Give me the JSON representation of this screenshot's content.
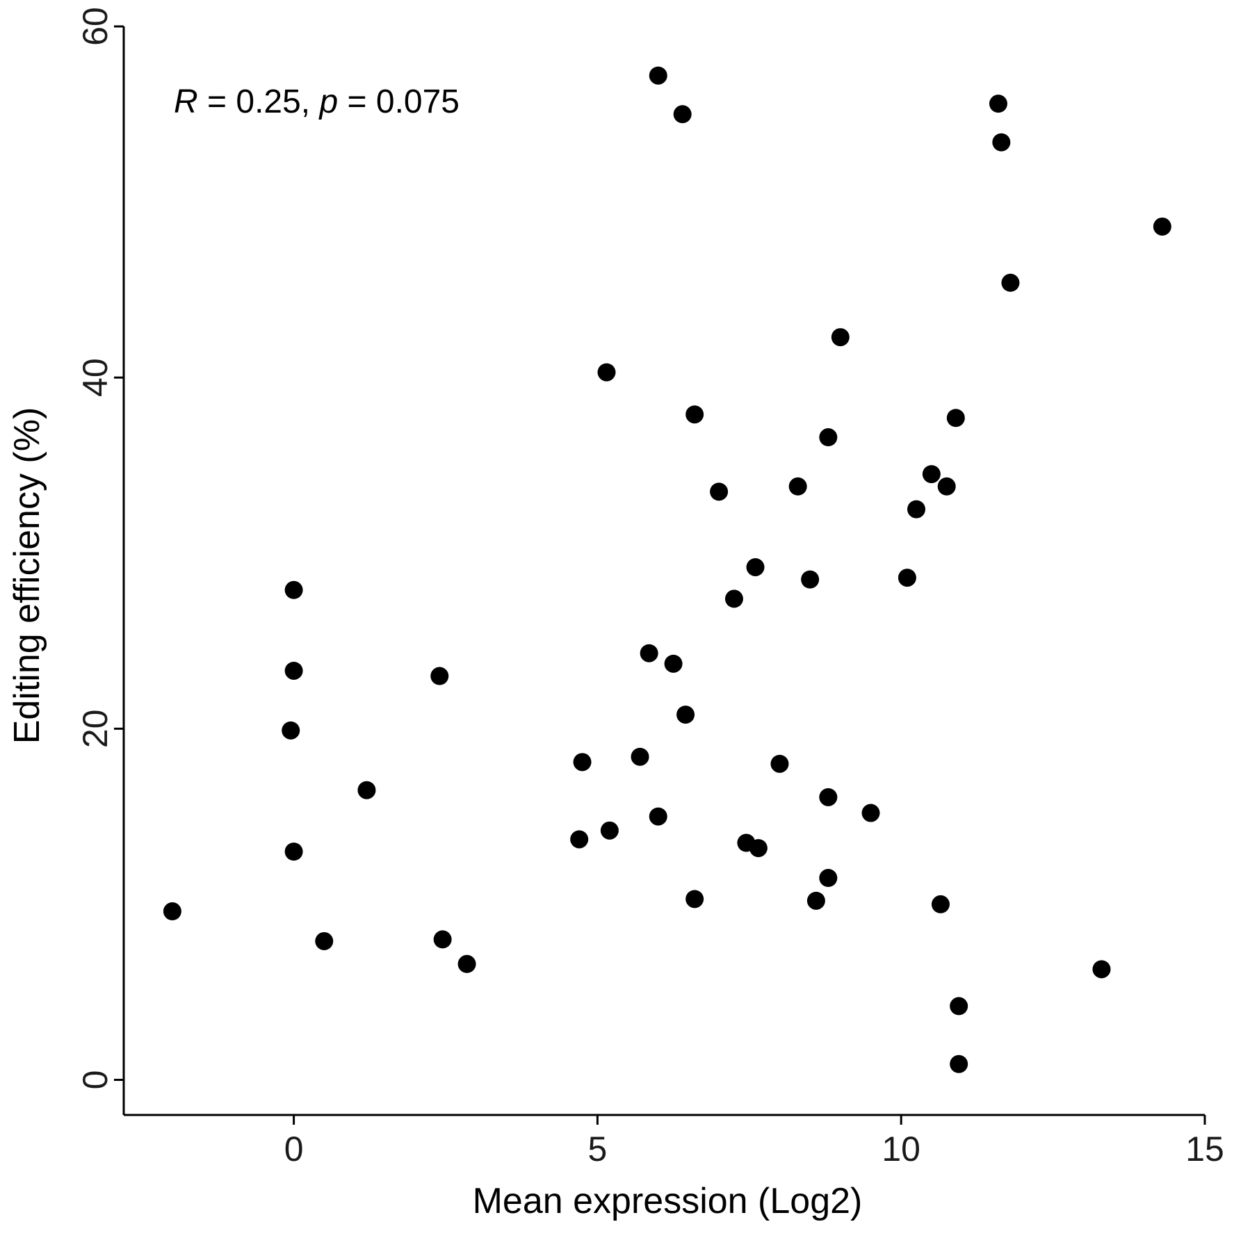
{
  "chart_data": {
    "type": "scatter",
    "title": "",
    "xlabel": "Mean expression (Log2)",
    "ylabel": "Editing efficiency (%)",
    "xlim": [
      -2.8,
      15
    ],
    "ylim": [
      -2,
      60
    ],
    "xticks": [
      0,
      5,
      10,
      15
    ],
    "yticks": [
      0,
      20,
      40,
      60
    ],
    "grid": false,
    "legend": "none",
    "point_color": "#000000",
    "annotation": {
      "r_label": "R",
      "r_value": " = 0.25, ",
      "p_label": "p",
      "p_value": " = 0.075"
    },
    "points": [
      {
        "x": 6.0,
        "y": 57.2
      },
      {
        "x": 6.4,
        "y": 55.0
      },
      {
        "x": 11.6,
        "y": 55.6
      },
      {
        "x": 11.65,
        "y": 53.4
      },
      {
        "x": 14.3,
        "y": 48.6
      },
      {
        "x": 11.8,
        "y": 45.4
      },
      {
        "x": 9.0,
        "y": 42.3
      },
      {
        "x": 5.15,
        "y": 40.3
      },
      {
        "x": 6.6,
        "y": 37.9
      },
      {
        "x": 10.9,
        "y": 37.7
      },
      {
        "x": 8.8,
        "y": 36.6
      },
      {
        "x": 10.5,
        "y": 34.5
      },
      {
        "x": 8.3,
        "y": 33.8
      },
      {
        "x": 10.75,
        "y": 33.8
      },
      {
        "x": 7.0,
        "y": 33.5
      },
      {
        "x": 10.25,
        "y": 32.5
      },
      {
        "x": 7.6,
        "y": 29.2
      },
      {
        "x": 8.5,
        "y": 28.5
      },
      {
        "x": 10.1,
        "y": 28.6
      },
      {
        "x": 0.0,
        "y": 27.9
      },
      {
        "x": 7.25,
        "y": 27.4
      },
      {
        "x": 5.85,
        "y": 24.3
      },
      {
        "x": 6.25,
        "y": 23.7
      },
      {
        "x": 0.0,
        "y": 23.3
      },
      {
        "x": 2.4,
        "y": 23.0
      },
      {
        "x": 6.45,
        "y": 20.8
      },
      {
        "x": -0.05,
        "y": 19.9
      },
      {
        "x": 4.75,
        "y": 18.1
      },
      {
        "x": 5.7,
        "y": 18.4
      },
      {
        "x": 8.0,
        "y": 18.0
      },
      {
        "x": 1.2,
        "y": 16.5
      },
      {
        "x": 8.8,
        "y": 16.1
      },
      {
        "x": 9.5,
        "y": 15.2
      },
      {
        "x": 6.0,
        "y": 15.0
      },
      {
        "x": 5.2,
        "y": 14.2
      },
      {
        "x": 4.7,
        "y": 13.7
      },
      {
        "x": 7.45,
        "y": 13.5
      },
      {
        "x": 7.65,
        "y": 13.2
      },
      {
        "x": 0.0,
        "y": 13.0
      },
      {
        "x": 8.8,
        "y": 11.5
      },
      {
        "x": 6.6,
        "y": 10.3
      },
      {
        "x": 8.6,
        "y": 10.2
      },
      {
        "x": 10.65,
        "y": 10.0
      },
      {
        "x": -2.0,
        "y": 9.6
      },
      {
        "x": 0.5,
        "y": 7.9
      },
      {
        "x": 2.45,
        "y": 8.0
      },
      {
        "x": 2.85,
        "y": 6.6
      },
      {
        "x": 13.3,
        "y": 6.3
      },
      {
        "x": 10.95,
        "y": 4.2
      },
      {
        "x": 10.95,
        "y": 0.9
      }
    ]
  }
}
